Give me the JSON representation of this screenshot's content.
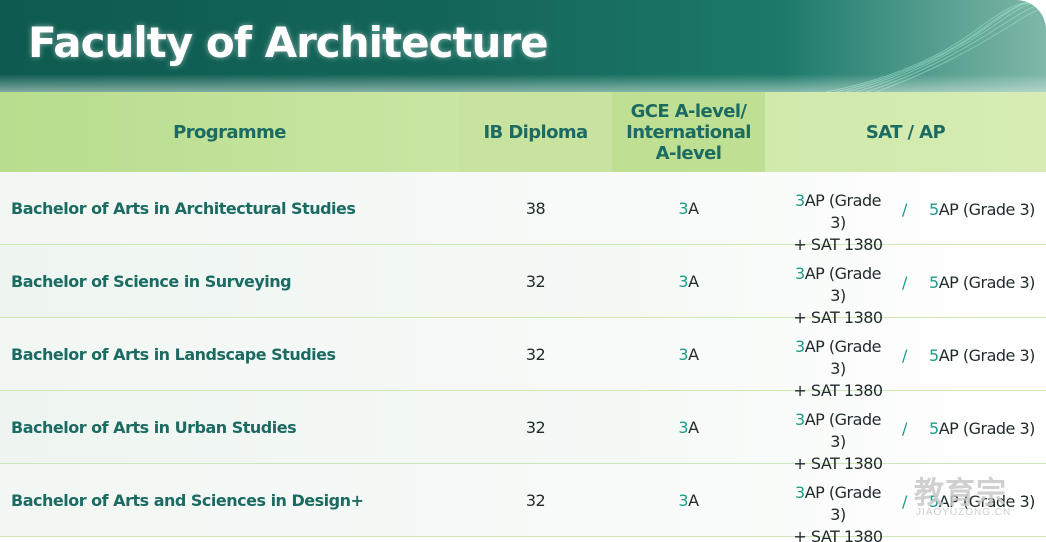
{
  "header": {
    "title": "Faculty of Architecture"
  },
  "table": {
    "columns": {
      "programme": "Programme",
      "ib": "IB Diploma",
      "gce_line1": "GCE A-level/",
      "gce_line2": "International",
      "gce_line3": "A-level",
      "sat": "SAT / AP"
    },
    "rows": [
      {
        "programme": "Bachelor of Arts in Architectural Studies",
        "ib": "38",
        "gce_num": "3",
        "gce_unit": "A",
        "sat_num1": "3",
        "sat_text1": "AP (Grade 3)",
        "sat_text1b": "+ SAT 1380",
        "sep": "/",
        "sat_num2": "5",
        "sat_text2": "AP (Grade 3)"
      },
      {
        "programme": "Bachelor of Science in Surveying",
        "ib": "32",
        "gce_num": "3",
        "gce_unit": "A",
        "sat_num1": "3",
        "sat_text1": "AP (Grade 3)",
        "sat_text1b": "+ SAT 1380",
        "sep": "/",
        "sat_num2": "5",
        "sat_text2": "AP (Grade 3)"
      },
      {
        "programme": "Bachelor of Arts in Landscape Studies",
        "ib": "32",
        "gce_num": "3",
        "gce_unit": "A",
        "sat_num1": "3",
        "sat_text1": "AP (Grade 3)",
        "sat_text1b": "+ SAT 1380",
        "sep": "/",
        "sat_num2": "5",
        "sat_text2": "AP (Grade 3)"
      },
      {
        "programme": "Bachelor of Arts in Urban Studies",
        "ib": "32",
        "gce_num": "3",
        "gce_unit": "A",
        "sat_num1": "3",
        "sat_text1": "AP (Grade 3)",
        "sat_text1b": "+ SAT 1380",
        "sep": "/",
        "sat_num2": "5",
        "sat_text2": "AP (Grade 3)"
      },
      {
        "programme": "Bachelor of Arts and Sciences in Design+",
        "ib": "32",
        "gce_num": "3",
        "gce_unit": "A",
        "sat_num1": "3",
        "sat_text1": "AP (Grade 3)",
        "sat_text1b": "+ SAT 1380",
        "sep": "/",
        "sat_num2": "5",
        "sat_text2": "AP (Grade 3)"
      }
    ]
  },
  "watermark": {
    "text": "教育宗",
    "sub": "JIAOYUZONG.CN"
  },
  "colors": {
    "banner": "#14665a",
    "header_bg": "#c8e39f",
    "accent": "#1f9b8a",
    "heading_text": "#1b6b62"
  }
}
